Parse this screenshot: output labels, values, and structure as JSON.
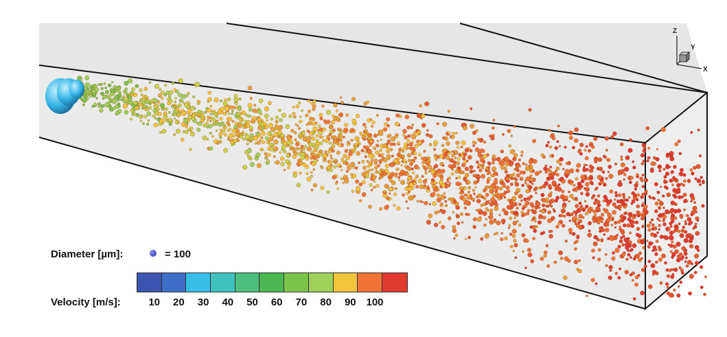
{
  "legend": {
    "diameter_label": "Diameter [µm]:",
    "diameter_value": "= 100",
    "velocity_label": "Velocity [m/s]:",
    "colors": [
      "#3a54b0",
      "#3f6ec9",
      "#37bde8",
      "#3fc1bd",
      "#4cbf7d",
      "#4cb652",
      "#7cc34b",
      "#9fd15a",
      "#f2c43c",
      "#ef7436",
      "#e23a2f"
    ],
    "ticks": [
      "10",
      "20",
      "30",
      "40",
      "50",
      "60",
      "70",
      "80",
      "90",
      "100"
    ]
  },
  "axes": {
    "z": "Z",
    "y": "Y",
    "x": "X"
  }
}
